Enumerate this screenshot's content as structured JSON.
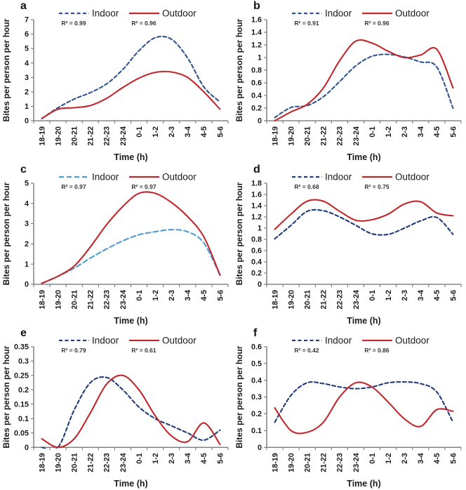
{
  "figure": {
    "ylabel": "Bites per person per hour",
    "xlabel": "Time (h)",
    "legend_position": "top",
    "axis_color": "#6e6e6e",
    "text_color": "#1a1a1a",
    "categories": [
      "18-19",
      "19-20",
      "20-21",
      "21-22",
      "22-23",
      "23-24",
      "0-1",
      "1-2",
      "2-3",
      "3-4",
      "4-5",
      "5-6"
    ]
  },
  "chart_data": [
    {
      "type": "line",
      "panel": "a",
      "xlabel": "Time (h)",
      "ylabel": "Bites per person per hour",
      "categories": [
        "18-19",
        "19-20",
        "20-21",
        "21-22",
        "22-23",
        "23-24",
        "0-1",
        "1-2",
        "2-3",
        "3-4",
        "4-5",
        "5-6"
      ],
      "ylim": [
        0,
        7
      ],
      "yticks": [
        "0",
        "1",
        "2",
        "3",
        "4",
        "5",
        "6",
        "7"
      ],
      "grid": false,
      "series": [
        {
          "name": "Indoor",
          "r2": "R² = 0.99",
          "color": "#31548e",
          "dash": "5,3.5",
          "values": [
            0.15,
            0.9,
            1.5,
            1.95,
            2.55,
            3.55,
            4.85,
            5.75,
            5.65,
            4.35,
            2.35,
            1.3
          ]
        },
        {
          "name": "Outdoor",
          "r2": "R² = 0.96",
          "color": "#c0282d",
          "dash": "",
          "values": [
            0.15,
            0.8,
            0.9,
            1.05,
            1.55,
            2.3,
            2.95,
            3.35,
            3.38,
            3.0,
            2.0,
            0.8
          ]
        }
      ]
    },
    {
      "type": "line",
      "panel": "b",
      "xlabel": "Time (h)",
      "ylabel": "Bites per person per hour",
      "categories": [
        "18-19",
        "19-20",
        "20-21",
        "21-22",
        "22-23",
        "23-24",
        "0-1",
        "1-2",
        "2-3",
        "3-4",
        "4-5",
        "5-6"
      ],
      "ylim": [
        0,
        1.6
      ],
      "yticks": [
        "0",
        "0.2",
        "0.4",
        "0.6",
        "0.8",
        "1",
        "1.2",
        "1.4",
        "1.6"
      ],
      "grid": false,
      "series": [
        {
          "name": "Indoor",
          "r2": "R² = 0.91",
          "color": "#31548e",
          "dash": "5,3.5",
          "values": [
            0.05,
            0.21,
            0.24,
            0.38,
            0.62,
            0.87,
            1.02,
            1.05,
            1.01,
            0.93,
            0.85,
            0.2
          ]
        },
        {
          "name": "Outdoor",
          "r2": "R² = 0.96",
          "color": "#c0282d",
          "dash": "",
          "values": [
            0.0,
            0.14,
            0.26,
            0.52,
            0.95,
            1.26,
            1.23,
            1.1,
            1.0,
            1.04,
            1.13,
            0.52
          ]
        }
      ]
    },
    {
      "type": "line",
      "panel": "c",
      "xlabel": "Time (h)",
      "ylabel": "Bites per person per hour",
      "categories": [
        "18-19",
        "19-20",
        "20-21",
        "21-22",
        "22-23",
        "23-24",
        "0-1",
        "1-2",
        "2-3",
        "3-4",
        "4-5",
        "5-6"
      ],
      "ylim": [
        0,
        5
      ],
      "yticks": [
        "0",
        "1",
        "2",
        "3",
        "4",
        "5"
      ],
      "grid": false,
      "series": [
        {
          "name": "Indoor",
          "r2": "R² = 0.97",
          "color": "#4f9bd5",
          "dash": "7,4",
          "values": [
            0.05,
            0.4,
            0.8,
            1.3,
            1.75,
            2.15,
            2.45,
            2.6,
            2.7,
            2.6,
            2.05,
            0.45
          ]
        },
        {
          "name": "Outdoor",
          "r2": "R² = 0.97",
          "color": "#c0282d",
          "dash": "",
          "values": [
            0.05,
            0.4,
            0.9,
            1.85,
            2.95,
            3.85,
            4.5,
            4.5,
            4.05,
            3.35,
            2.35,
            0.45
          ]
        }
      ]
    },
    {
      "type": "line",
      "panel": "d",
      "xlabel": "Time (h)",
      "ylabel": "Bites per person per hour",
      "categories": [
        "18-19",
        "19-20",
        "20-21",
        "21-22",
        "22-23",
        "23-24",
        "0-1",
        "1-2",
        "2-3",
        "3-4",
        "4-5",
        "5-6"
      ],
      "ylim": [
        0,
        1.8
      ],
      "yticks": [
        "0",
        "0.2",
        "0.4",
        "0.6",
        "0.8",
        "1",
        "1.2",
        "1.4",
        "1.6",
        "1.8"
      ],
      "grid": false,
      "series": [
        {
          "name": "Indoor",
          "r2": "R² = 0.68",
          "color": "#1f3b7a",
          "dash": "5,3.5",
          "values": [
            0.81,
            1.05,
            1.3,
            1.31,
            1.2,
            1.05,
            0.9,
            0.89,
            1.0,
            1.13,
            1.19,
            0.89
          ]
        },
        {
          "name": "Outdoor",
          "r2": "R² = 0.75",
          "color": "#c0282d",
          "dash": "",
          "values": [
            0.98,
            1.25,
            1.48,
            1.48,
            1.3,
            1.14,
            1.15,
            1.25,
            1.43,
            1.47,
            1.27,
            1.22
          ]
        }
      ]
    },
    {
      "type": "line",
      "panel": "e",
      "xlabel": "Time (h)",
      "ylabel": "Bites per person per hour",
      "categories": [
        "18-19",
        "19-20",
        "20-21",
        "21-22",
        "22-23",
        "23-24",
        "0-1",
        "1-2",
        "2-3",
        "3-4",
        "4-5",
        "5-6"
      ],
      "ylim": [
        0,
        0.35
      ],
      "yticks": [
        "0",
        "0.05",
        "0.1",
        "0.15",
        "0.2",
        "0.25",
        "0.3",
        "0.35"
      ],
      "grid": false,
      "series": [
        {
          "name": "Indoor",
          "r2": "R² = 0.79",
          "color": "#1f3b7a",
          "dash": "5,3.5",
          "values": [
            0.0,
            0.0,
            0.13,
            0.225,
            0.243,
            0.2,
            0.14,
            0.1,
            0.075,
            0.05,
            0.025,
            0.06
          ]
        },
        {
          "name": "Outdoor",
          "r2": "R² = 0.61",
          "color": "#c0282d",
          "dash": "",
          "values": [
            0.03,
            0.0,
            0.03,
            0.12,
            0.22,
            0.25,
            0.2,
            0.11,
            0.04,
            0.02,
            0.085,
            0.01
          ]
        }
      ]
    },
    {
      "type": "line",
      "panel": "f",
      "xlabel": "Time (h)",
      "ylabel": "Bites per person per hour",
      "categories": [
        "18-19",
        "19-20",
        "20-21",
        "21-22",
        "22-23",
        "23-24",
        "0-1",
        "1-2",
        "2-3",
        "3-4",
        "4-5",
        "5-6"
      ],
      "ylim": [
        0,
        0.6
      ],
      "yticks": [
        "0",
        "0.1",
        "0.2",
        "0.3",
        "0.4",
        "0.5",
        "0.6"
      ],
      "grid": false,
      "series": [
        {
          "name": "Indoor",
          "r2": "R² = 0.42",
          "color": "#1f3b7a",
          "dash": "5,3.5",
          "values": [
            0.15,
            0.31,
            0.385,
            0.38,
            0.36,
            0.35,
            0.36,
            0.385,
            0.39,
            0.38,
            0.33,
            0.15
          ]
        },
        {
          "name": "Outdoor",
          "r2": "R² = 0.86",
          "color": "#c0282d",
          "dash": "",
          "values": [
            0.235,
            0.1,
            0.09,
            0.15,
            0.3,
            0.385,
            0.36,
            0.27,
            0.17,
            0.125,
            0.225,
            0.215
          ]
        }
      ]
    }
  ]
}
